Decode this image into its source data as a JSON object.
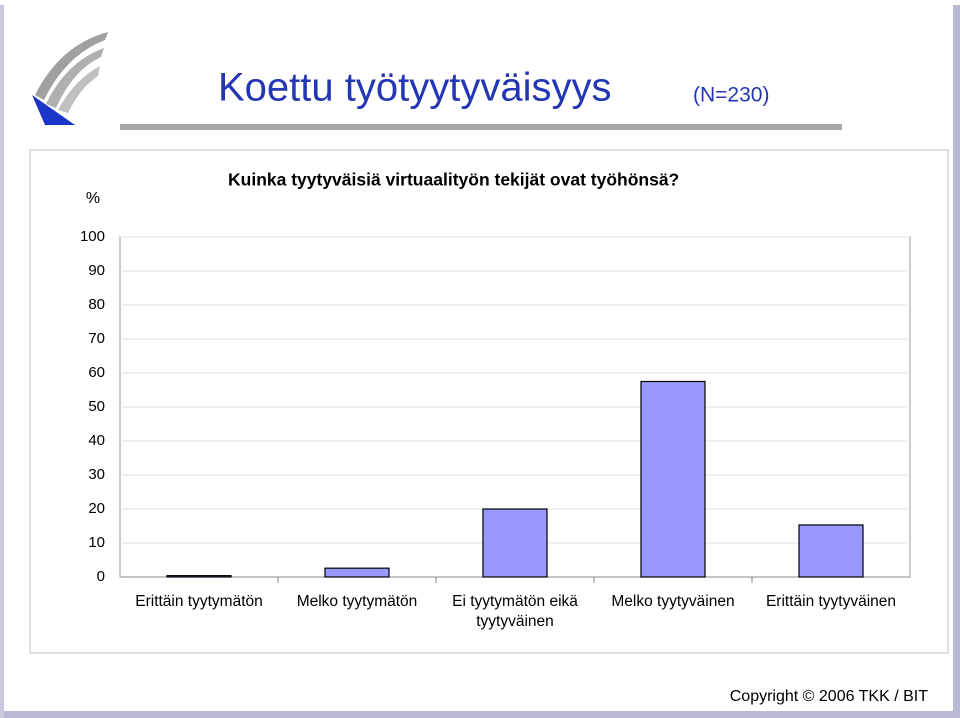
{
  "slide": {
    "title": "Koettu työtyytyväisyys",
    "note": "(N=230)",
    "footer": "Copyright © 2006 TKK / BIT"
  },
  "chart_data": {
    "type": "bar",
    "title": "Kuinka tyytyväisiä virtuaalityön tekijät ovat työhönsä?",
    "y_label": "%",
    "categories": [
      "Erittäin tyytymätön",
      "Melko tyytymätön",
      "Ei tyytymätön eikä tyytyväinen",
      "Melko tyytyväinen",
      "Erittäin tyytyväinen"
    ],
    "values": [
      0.4,
      2.6,
      20,
      57.5,
      15.3
    ],
    "color": "#9999ff",
    "ylim": [
      0,
      100
    ],
    "yticks": [
      0,
      10,
      20,
      30,
      40,
      50,
      60,
      70,
      80,
      90,
      100
    ],
    "grid": true
  }
}
